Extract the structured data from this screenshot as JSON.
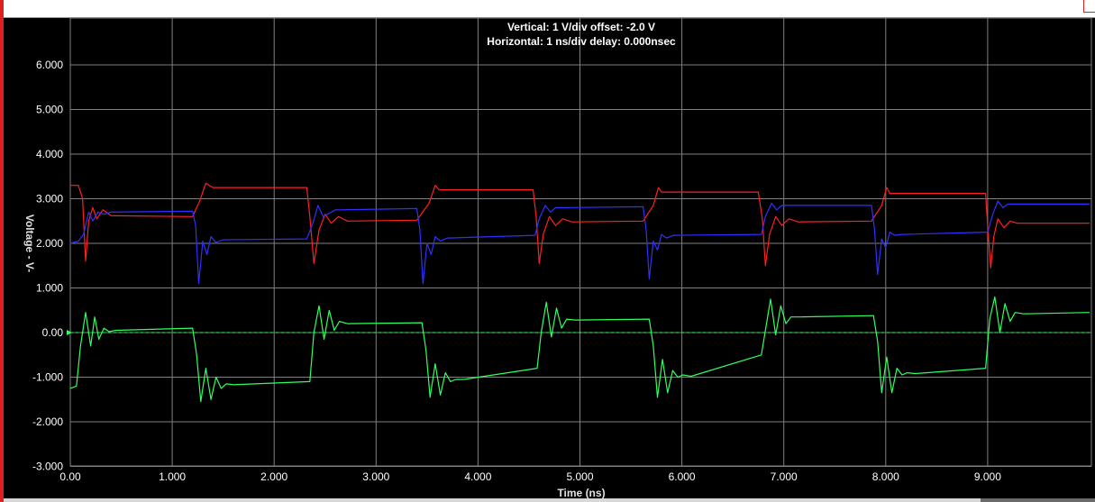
{
  "chart_data": {
    "type": "line",
    "title": "Vertical: 1  V/div  offset: -2.0 V",
    "subtitle": "Horizontal: 1 ns/div  delay: 0.000nsec",
    "xlabel": "Time  (ns)",
    "ylabel": "Voltage  - V-",
    "xlim": [
      0,
      10
    ],
    "ylim": [
      -3,
      7
    ],
    "x_ticks": [
      "0.00",
      "1.000",
      "2.000",
      "3.000",
      "4.000",
      "5.000",
      "6.000",
      "7.000",
      "8.000",
      "9.000"
    ],
    "y_ticks": [
      "-3.000",
      "-2.000",
      "-1.000",
      "0.00",
      "1.000",
      "2.000",
      "3.000",
      "4.000",
      "5.000",
      "6.000"
    ],
    "grid": true,
    "background": "#000000",
    "grid_color": "#808080",
    "series": [
      {
        "color": "#ff2020",
        "x": [
          0,
          0.08,
          0.12,
          0.15,
          0.18,
          0.22,
          0.26,
          0.32,
          0.4,
          1.2,
          1.27,
          1.33,
          1.4,
          1.5,
          2.32,
          2.35,
          2.39,
          2.44,
          2.5,
          2.56,
          2.63,
          2.72,
          3.4,
          3.52,
          3.58,
          3.62,
          3.7,
          4.54,
          4.57,
          4.6,
          4.64,
          4.7,
          4.76,
          4.83,
          4.92,
          5.62,
          5.72,
          5.77,
          5.8,
          5.9,
          6.75,
          6.79,
          6.82,
          6.86,
          6.92,
          6.98,
          7.05,
          7.14,
          7.86,
          7.96,
          8.01,
          8.04,
          8.12,
          8.98,
          9.0,
          9.03,
          9.06,
          9.1,
          9.16,
          9.22,
          9.29,
          9.38,
          10.0
        ],
        "values": [
          3.3,
          3.3,
          3.0,
          1.6,
          2.5,
          2.8,
          2.55,
          2.75,
          2.62,
          2.6,
          2.95,
          3.35,
          3.25,
          3.25,
          3.25,
          2.6,
          1.55,
          2.3,
          2.65,
          2.45,
          2.6,
          2.5,
          2.52,
          2.9,
          3.3,
          3.2,
          3.2,
          3.2,
          2.6,
          1.55,
          2.2,
          2.6,
          2.4,
          2.55,
          2.48,
          2.5,
          2.85,
          3.25,
          3.15,
          3.15,
          3.15,
          2.55,
          1.5,
          2.2,
          2.6,
          2.4,
          2.55,
          2.48,
          2.5,
          2.85,
          3.25,
          3.12,
          3.12,
          3.12,
          2.4,
          1.45,
          2.15,
          2.55,
          2.35,
          2.5,
          2.45,
          2.45,
          2.45
        ]
      },
      {
        "color": "#3030ff",
        "x": [
          0,
          0.08,
          0.13,
          0.18,
          0.22,
          0.27,
          0.33,
          0.4,
          1.2,
          1.23,
          1.26,
          1.3,
          1.34,
          1.38,
          1.43,
          1.5,
          2.32,
          2.38,
          2.43,
          2.48,
          2.6,
          3.4,
          3.43,
          3.46,
          3.5,
          3.54,
          3.58,
          3.63,
          3.7,
          4.56,
          4.6,
          4.66,
          4.71,
          4.76,
          4.85,
          5.62,
          5.65,
          5.68,
          5.72,
          5.76,
          5.8,
          5.85,
          5.92,
          6.78,
          6.82,
          6.88,
          6.93,
          6.98,
          7.08,
          7.86,
          7.89,
          7.92,
          7.96,
          8.0,
          8.04,
          8.09,
          8.16,
          9.0,
          9.05,
          9.1,
          9.15,
          9.2,
          9.3,
          10.0
        ],
        "values": [
          2.0,
          2.05,
          2.2,
          2.7,
          2.5,
          2.7,
          2.65,
          2.7,
          2.72,
          2.4,
          1.1,
          2.05,
          1.75,
          2.15,
          2.02,
          2.08,
          2.1,
          2.45,
          2.85,
          2.6,
          2.75,
          2.78,
          2.3,
          1.1,
          2.0,
          1.75,
          2.15,
          2.05,
          2.12,
          2.18,
          2.55,
          2.85,
          2.7,
          2.8,
          2.8,
          2.82,
          2.3,
          1.2,
          2.05,
          1.85,
          2.2,
          2.12,
          2.18,
          2.2,
          2.6,
          2.9,
          2.75,
          2.85,
          2.85,
          2.85,
          2.3,
          1.3,
          2.1,
          1.9,
          2.25,
          2.18,
          2.2,
          2.25,
          2.65,
          2.95,
          2.8,
          2.88,
          2.88,
          2.88
        ]
      },
      {
        "color": "#30ff60",
        "x": [
          0,
          0.06,
          0.1,
          0.15,
          0.2,
          0.24,
          0.28,
          0.33,
          0.38,
          0.45,
          1.2,
          1.24,
          1.28,
          1.33,
          1.38,
          1.43,
          1.48,
          1.53,
          1.6,
          2.35,
          2.39,
          2.44,
          2.49,
          2.54,
          2.59,
          2.64,
          2.72,
          3.45,
          3.49,
          3.53,
          3.58,
          3.63,
          3.68,
          3.73,
          3.78,
          3.86,
          4.58,
          4.62,
          4.67,
          4.72,
          4.77,
          4.82,
          4.87,
          4.95,
          5.68,
          5.72,
          5.76,
          5.81,
          5.86,
          5.91,
          5.96,
          6.01,
          6.09,
          6.78,
          6.82,
          6.87,
          6.92,
          6.97,
          7.02,
          7.07,
          7.15,
          7.88,
          7.92,
          7.96,
          8.01,
          8.06,
          8.11,
          8.16,
          8.21,
          8.29,
          8.98,
          9.02,
          9.07,
          9.12,
          9.17,
          9.22,
          9.27,
          9.35,
          10.0
        ],
        "values": [
          -1.25,
          -1.2,
          -0.3,
          0.45,
          -0.3,
          0.35,
          -0.15,
          0.1,
          0.02,
          0.05,
          0.1,
          -0.5,
          -1.55,
          -0.8,
          -1.5,
          -1.0,
          -1.25,
          -1.15,
          -1.17,
          -1.1,
          0.0,
          0.6,
          -0.15,
          0.5,
          0.05,
          0.25,
          0.2,
          0.22,
          -0.4,
          -1.45,
          -0.7,
          -1.4,
          -0.9,
          -1.1,
          -1.05,
          -1.05,
          -0.8,
          0.0,
          0.68,
          -0.1,
          0.55,
          0.1,
          0.3,
          0.28,
          0.3,
          -0.3,
          -1.45,
          -0.6,
          -1.35,
          -0.85,
          -1.0,
          -0.95,
          -0.98,
          -0.5,
          0.05,
          0.75,
          -0.05,
          0.6,
          0.2,
          0.35,
          0.35,
          0.38,
          -0.2,
          -1.35,
          -0.55,
          -1.35,
          -0.8,
          -0.95,
          -0.9,
          -0.92,
          -0.8,
          0.3,
          0.8,
          0.0,
          0.65,
          0.25,
          0.45,
          0.42,
          0.45
        ]
      }
    ]
  }
}
